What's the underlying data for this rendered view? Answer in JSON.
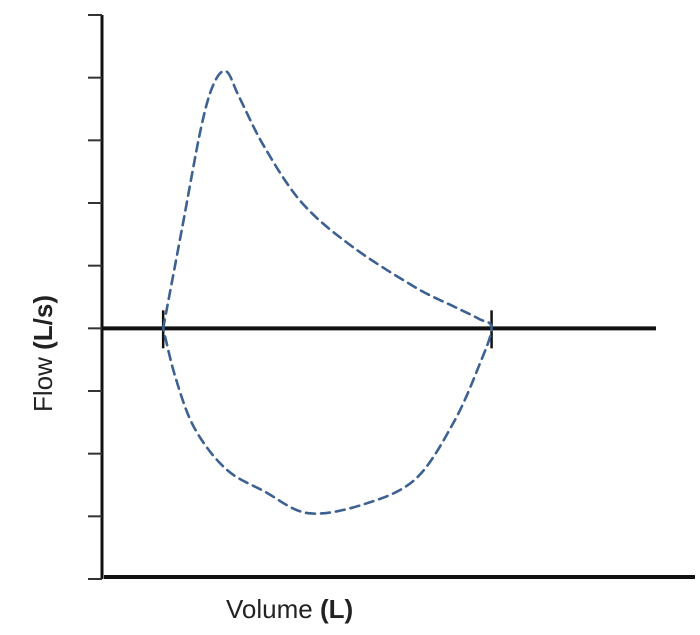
{
  "chart_data": {
    "type": "line",
    "title": "",
    "ylabel": {
      "name": "Flow",
      "unit": "(L/s)"
    },
    "xlabel": {
      "name": "Volume",
      "unit": "(L)"
    },
    "xlim": [
      -1.0,
      8.5
    ],
    "ylim": [
      -4.0,
      5.0
    ],
    "y_ticks_count": 9,
    "grid": false,
    "series": [
      {
        "style": "dashed",
        "color": "#3d6191",
        "points": [
          [
            0.0,
            0.0
          ],
          [
            0.3,
            1.6
          ],
          [
            0.6,
            3.2
          ],
          [
            0.8,
            3.9
          ],
          [
            1.0,
            4.1
          ],
          [
            1.2,
            3.7
          ],
          [
            1.6,
            2.9
          ],
          [
            2.2,
            2.0
          ],
          [
            3.0,
            1.3
          ],
          [
            4.0,
            0.65
          ],
          [
            4.6,
            0.35
          ],
          [
            5.0,
            0.15
          ],
          [
            5.2,
            0.0
          ],
          [
            5.0,
            -0.6
          ],
          [
            4.6,
            -1.5
          ],
          [
            4.0,
            -2.4
          ],
          [
            3.2,
            -2.8
          ],
          [
            2.3,
            -2.95
          ],
          [
            1.6,
            -2.6
          ],
          [
            1.0,
            -2.25
          ],
          [
            0.5,
            -1.6
          ],
          [
            0.2,
            -0.8
          ],
          [
            0.0,
            0.0
          ]
        ]
      }
    ],
    "markers_at_zero": [
      0.0,
      5.2
    ],
    "colors": {
      "axis": "#111111",
      "tick": "#333333",
      "curve": "#3d6191"
    }
  }
}
